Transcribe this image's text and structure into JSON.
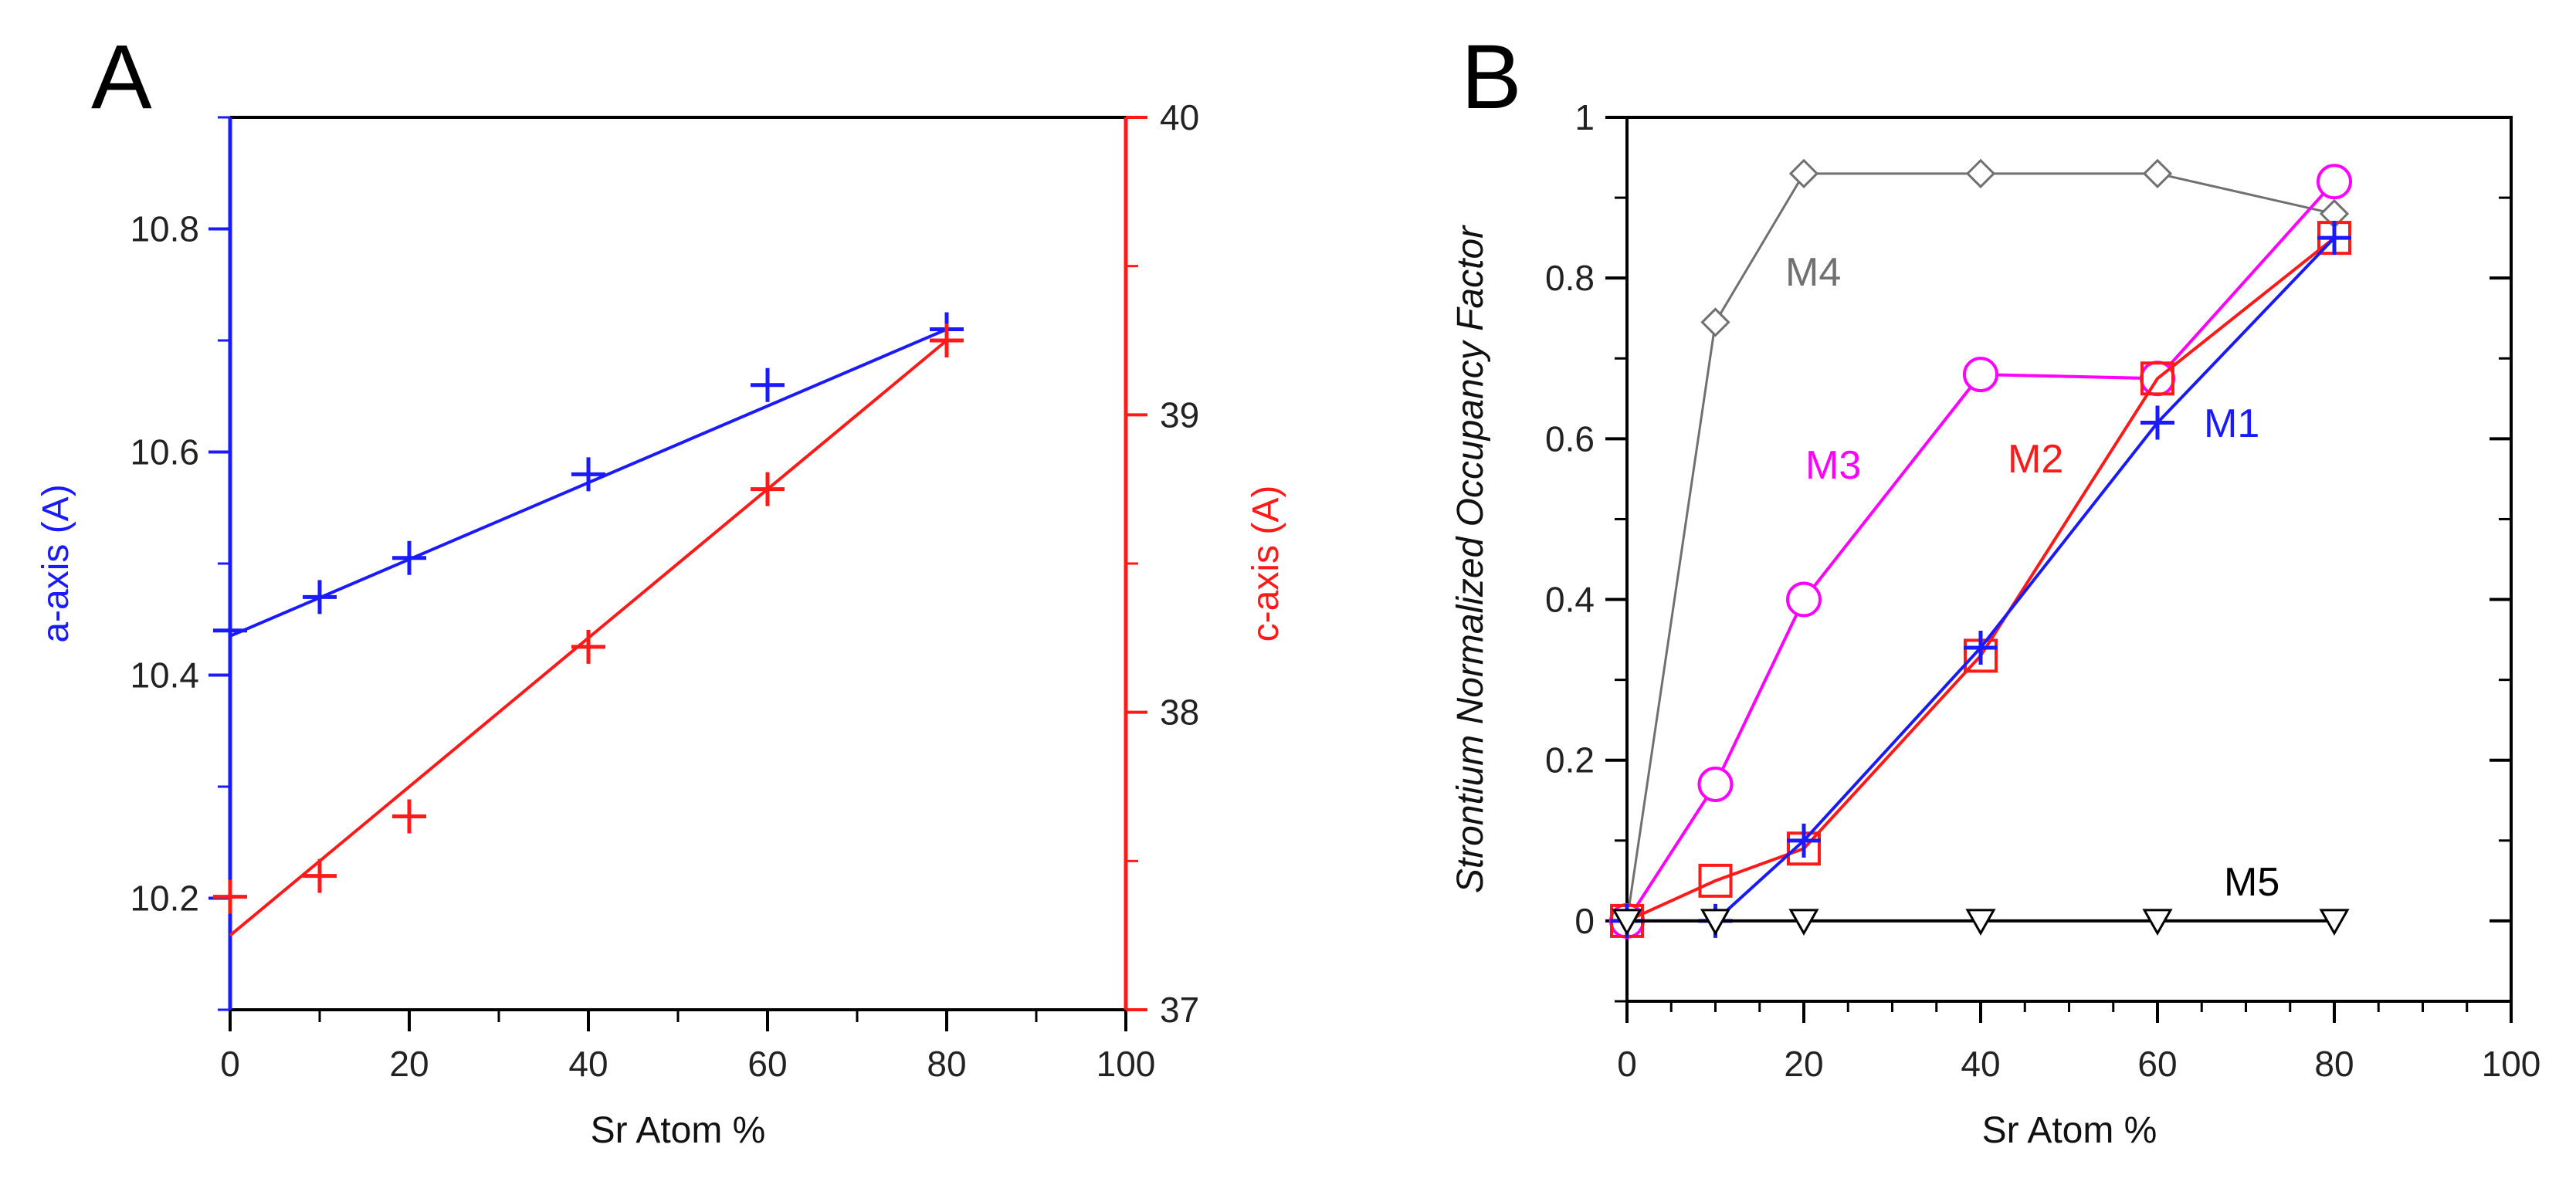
{
  "colors": {
    "blue": "#1a1aff",
    "red": "#ff1a1a",
    "magenta": "#ff00ff",
    "gray": "#707070",
    "black": "#000000"
  },
  "chart_data": [
    {
      "type": "scatter",
      "panel_label": "A",
      "title": "",
      "xlabel": "Sr Atom %",
      "xlim": [
        0,
        100
      ],
      "x_ticks": [
        0,
        20,
        40,
        60,
        80,
        100
      ],
      "ylabel_left": "a-axis (A)",
      "ylim_left": [
        10.1,
        10.9
      ],
      "y_ticks_left": [
        10.2,
        10.4,
        10.6,
        10.8
      ],
      "ylabel_right": "c-axis (A)",
      "ylim_right": [
        37,
        40
      ],
      "y_ticks_right": [
        37,
        38,
        39,
        40
      ],
      "grid": false,
      "series": [
        {
          "name": "a-axis",
          "axis": "left",
          "color": "#1a1aff",
          "marker": "plus",
          "x": [
            0,
            10,
            20,
            40,
            60,
            80
          ],
          "y": [
            10.44,
            10.47,
            10.505,
            10.58,
            10.66,
            10.71
          ],
          "fit": {
            "x": [
              0,
              80
            ],
            "y": [
              10.435,
              10.71
            ]
          }
        },
        {
          "name": "c-axis",
          "axis": "right",
          "color": "#ff1a1a",
          "marker": "plus",
          "x": [
            0,
            10,
            20,
            40,
            60,
            80
          ],
          "y": [
            37.38,
            37.45,
            37.65,
            38.22,
            38.75,
            39.25
          ],
          "fit": {
            "x": [
              0,
              80
            ],
            "y": [
              37.25,
              39.25
            ]
          }
        }
      ]
    },
    {
      "type": "line",
      "panel_label": "B",
      "title": "",
      "xlabel": "Sr Atom %",
      "ylabel": "Strontium Normalized Occupancy Factor",
      "xlim": [
        0,
        100
      ],
      "ylim": [
        -0.1,
        1.0
      ],
      "x_ticks": [
        0,
        20,
        40,
        60,
        80,
        100
      ],
      "y_ticks": [
        0,
        0.2,
        0.4,
        0.6,
        0.8,
        1
      ],
      "grid": false,
      "series": [
        {
          "name": "M4",
          "color": "#707070",
          "marker": "diamond",
          "x": [
            0,
            10,
            20,
            40,
            60,
            80
          ],
          "y": [
            0,
            0.745,
            0.93,
            0.93,
            0.93,
            0.88
          ]
        },
        {
          "name": "M3",
          "color": "#ff00ff",
          "marker": "circle",
          "x": [
            0,
            10,
            20,
            40,
            60,
            80
          ],
          "y": [
            0,
            0.17,
            0.4,
            0.68,
            0.675,
            0.92
          ]
        },
        {
          "name": "M2",
          "color": "#ff1a1a",
          "marker": "square",
          "x": [
            0,
            10,
            20,
            40,
            60,
            80
          ],
          "y": [
            0,
            0.05,
            0.09,
            0.33,
            0.675,
            0.85
          ]
        },
        {
          "name": "M1",
          "color": "#1a1aff",
          "marker": "plus",
          "x": [
            0,
            10,
            20,
            40,
            60,
            80
          ],
          "y": [
            0,
            0,
            0.1,
            0.34,
            0.62,
            0.85
          ]
        },
        {
          "name": "M5",
          "color": "#000000",
          "marker": "triangle-down",
          "x": [
            0,
            10,
            20,
            40,
            60,
            80
          ],
          "y": [
            0,
            0,
            0,
            0,
            0,
            0
          ]
        }
      ]
    }
  ]
}
